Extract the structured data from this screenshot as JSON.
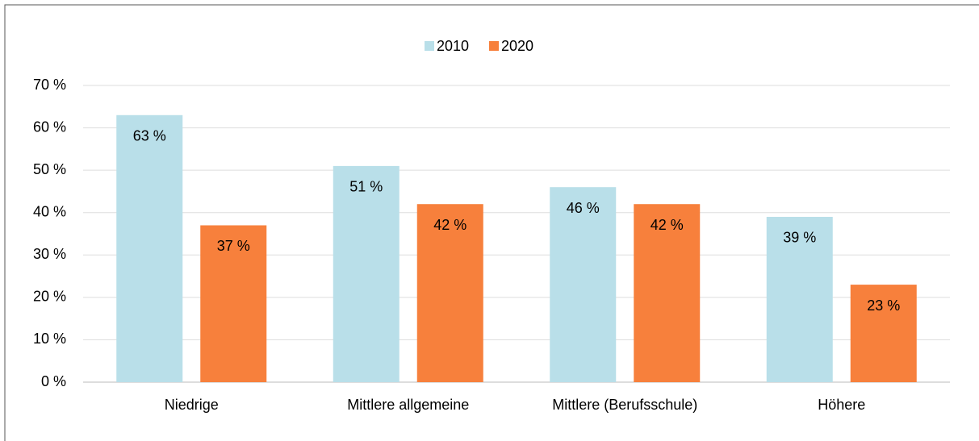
{
  "chart_data": {
    "type": "bar",
    "categories": [
      "Niedrige",
      "Mittlere allgemeine",
      "Mittlere (Berufsschule)",
      "Höhere"
    ],
    "series": [
      {
        "name": "2010",
        "color": "#b9dfe9",
        "values": [
          63,
          51,
          46,
          39
        ],
        "value_labels": [
          "63 %",
          "51 %",
          "46 %",
          "39 %"
        ]
      },
      {
        "name": "2020",
        "color": "#f7803c",
        "values": [
          37,
          42,
          42,
          23
        ],
        "value_labels": [
          "37 %",
          "42 %",
          "42 %",
          "23 %"
        ]
      }
    ],
    "ylim": [
      0,
      70
    ],
    "yticks": [
      {
        "value": 0,
        "label": "0 %"
      },
      {
        "value": 10,
        "label": "10 %"
      },
      {
        "value": 20,
        "label": "20 %"
      },
      {
        "value": 30,
        "label": "30 %"
      },
      {
        "value": 40,
        "label": "40 %"
      },
      {
        "value": 50,
        "label": "50 %"
      },
      {
        "value": 60,
        "label": "60 %"
      },
      {
        "value": 70,
        "label": "70 %"
      }
    ],
    "grid": true,
    "legend": "top"
  }
}
